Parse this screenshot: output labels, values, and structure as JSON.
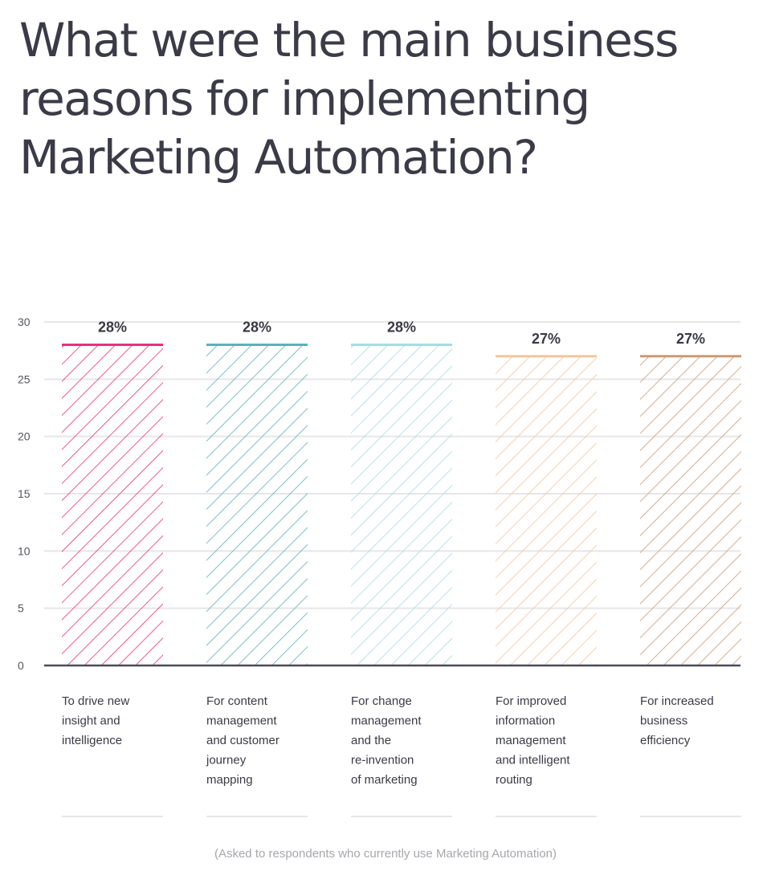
{
  "title": "What were the main business reasons for implementing Marketing Automation?",
  "footnote": "(Asked to respondents who currently use Marketing Automation)",
  "chart_data": {
    "type": "bar",
    "categories": [
      "To drive new insight and intelligence",
      "For content management and customer journey mapping",
      "For change management and the re-invention of marketing",
      "For improved information management and intelligent routing",
      "For increased business efficiency"
    ],
    "category_lines": [
      [
        "To drive new",
        "insight and",
        "intelligence"
      ],
      [
        "For content",
        "management",
        "and customer",
        "journey",
        "mapping"
      ],
      [
        "For change",
        "management",
        "and the",
        "re-invention",
        "of marketing"
      ],
      [
        "For improved",
        "information",
        "management",
        "and intelligent",
        "routing"
      ],
      [
        "For increased",
        "business",
        "efficiency"
      ]
    ],
    "values": [
      28,
      28,
      28,
      27,
      27
    ],
    "data_labels": [
      "28%",
      "28%",
      "28%",
      "27%",
      "27%"
    ],
    "colors": [
      "#e8307e",
      "#5bb3b3",
      "#a6dde0",
      "#f2c79b",
      "#c99a76"
    ],
    "ylim": [
      0,
      30
    ],
    "yticks": [
      "0",
      "5",
      "10",
      "15",
      "20",
      "25",
      "30"
    ],
    "xlabel": "",
    "ylabel": "",
    "grid": true
  }
}
